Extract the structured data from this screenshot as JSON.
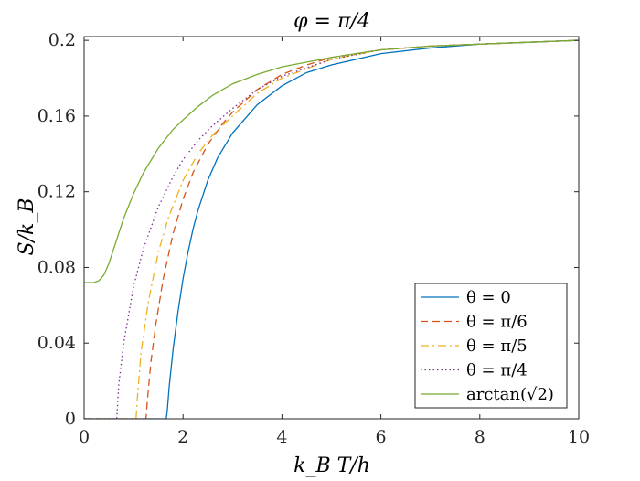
{
  "chart_data": {
    "type": "line",
    "title": "φ = π/4",
    "xlabel": "k_B T/h",
    "ylabel": "S/k_B",
    "xlim": [
      0,
      10
    ],
    "ylim": [
      0,
      0.202
    ],
    "x_ticks": [
      0,
      2,
      4,
      6,
      8,
      10
    ],
    "x_tick_labels": [
      "0",
      "2",
      "4",
      "6",
      "8",
      "10"
    ],
    "y_ticks": [
      0,
      0.04,
      0.08,
      0.12,
      0.16,
      0.2
    ],
    "y_tick_labels": [
      "0",
      "0.04",
      "0.08",
      "0.12",
      "0.16",
      "0.2"
    ],
    "grid": false,
    "legend_position": "bottom-right",
    "series": [
      {
        "name": "θ = 0",
        "color": "#0072BD",
        "dash": "solid",
        "x": [
          0,
          1.66,
          1.68,
          1.72,
          1.8,
          1.9,
          2.0,
          2.1,
          2.2,
          2.3,
          2.5,
          2.7,
          3.0,
          3.5,
          4.0,
          4.5,
          5.0,
          6.0,
          7.0,
          8.0,
          9.0,
          10.0
        ],
        "y": [
          0,
          0,
          0.004,
          0.017,
          0.037,
          0.057,
          0.074,
          0.088,
          0.1,
          0.11,
          0.126,
          0.138,
          0.151,
          0.166,
          0.176,
          0.183,
          0.187,
          0.193,
          0.196,
          0.198,
          0.199,
          0.2
        ]
      },
      {
        "name": "θ = π/6",
        "color": "#D95319",
        "dash": "dashed",
        "x": [
          0,
          1.25,
          1.28,
          1.35,
          1.45,
          1.6,
          1.8,
          2.0,
          2.2,
          2.5,
          2.8,
          3.0,
          3.5,
          4.0,
          4.5,
          5.0,
          6.0,
          7.0,
          8.0,
          9.0,
          10.0
        ],
        "y": [
          0,
          0,
          0.01,
          0.03,
          0.05,
          0.074,
          0.098,
          0.116,
          0.13,
          0.145,
          0.156,
          0.162,
          0.174,
          0.182,
          0.187,
          0.191,
          0.195,
          0.197,
          0.198,
          0.199,
          0.2
        ]
      },
      {
        "name": "θ = π/5",
        "color": "#EDB120",
        "dash": "dashdot",
        "x": [
          0,
          1.05,
          1.08,
          1.15,
          1.3,
          1.5,
          1.7,
          2.0,
          2.3,
          2.6,
          3.0,
          3.5,
          4.0,
          5.0,
          6.0,
          7.0,
          8.0,
          9.0,
          10.0
        ],
        "y": [
          0,
          0,
          0.012,
          0.035,
          0.062,
          0.088,
          0.106,
          0.126,
          0.14,
          0.15,
          0.16,
          0.172,
          0.18,
          0.19,
          0.195,
          0.197,
          0.198,
          0.199,
          0.2
        ]
      },
      {
        "name": "θ = π/4",
        "color": "#7E2F8E",
        "dash": "dotted",
        "x": [
          0,
          0.66,
          0.7,
          0.8,
          1.0,
          1.2,
          1.5,
          1.8,
          2.0,
          2.3,
          2.6,
          3.0,
          3.5,
          4.0,
          5.0,
          6.0,
          7.0,
          8.0,
          9.0,
          10.0
        ],
        "y": [
          0,
          0,
          0.018,
          0.04,
          0.07,
          0.09,
          0.112,
          0.128,
          0.137,
          0.147,
          0.155,
          0.164,
          0.174,
          0.181,
          0.19,
          0.195,
          0.197,
          0.198,
          0.199,
          0.2
        ]
      },
      {
        "name": "arctan(√2)",
        "color": "#77AC30",
        "dash": "solid",
        "x": [
          0,
          0.2,
          0.3,
          0.4,
          0.5,
          0.6,
          0.8,
          1.0,
          1.2,
          1.5,
          1.8,
          2.0,
          2.3,
          2.6,
          3.0,
          3.5,
          4.0,
          5.0,
          6.0,
          7.0,
          8.0,
          9.0,
          10.0
        ],
        "y": [
          0.072,
          0.072,
          0.073,
          0.076,
          0.082,
          0.09,
          0.106,
          0.119,
          0.13,
          0.143,
          0.153,
          0.158,
          0.165,
          0.171,
          0.177,
          0.182,
          0.186,
          0.191,
          0.195,
          0.197,
          0.198,
          0.199,
          0.2
        ]
      }
    ]
  }
}
